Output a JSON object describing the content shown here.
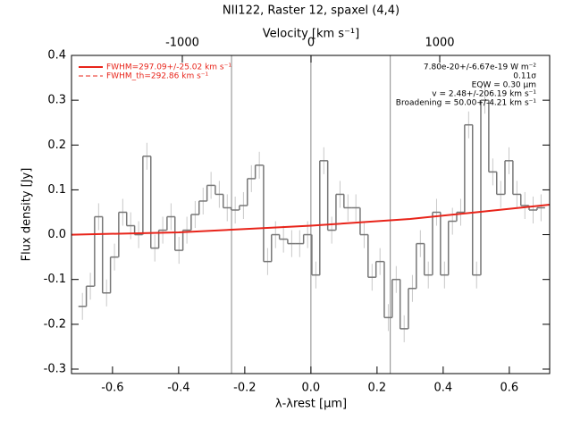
{
  "chart_data": {
    "type": "step",
    "title": "NII122, Raster 12, spaxel (4,4)",
    "xlabel": "λ-λrest [μm]",
    "ylabel": "Flux density [Jy]",
    "x2label": "Velocity [km s⁻¹]",
    "xlim": [
      -0.724,
      0.722
    ],
    "ylim": [
      -0.31,
      0.4
    ],
    "x2lim": [
      -1861,
      1854
    ],
    "xticks": [
      -0.6,
      -0.4,
      -0.2,
      {
        "value": 0,
        "label": "0.0"
      },
      0.2,
      0.4,
      0.6
    ],
    "yticks": [
      -0.3,
      -0.2,
      -0.1,
      {
        "value": 0,
        "label": "0.0"
      },
      0.1,
      0.2,
      0.3,
      0.4
    ],
    "x2ticks": [
      -1000,
      0,
      1000
    ],
    "vlines": [
      -0.24,
      0,
      0.24
    ],
    "bin_width": 0.0243,
    "x": [
      -0.691,
      -0.667,
      -0.642,
      -0.618,
      -0.594,
      -0.569,
      -0.545,
      -0.521,
      -0.496,
      -0.472,
      -0.448,
      -0.423,
      -0.399,
      -0.375,
      -0.35,
      -0.326,
      -0.302,
      -0.277,
      -0.253,
      -0.229,
      -0.204,
      -0.18,
      -0.156,
      -0.131,
      -0.107,
      -0.083,
      -0.058,
      -0.034,
      -0.01,
      0.015,
      0.039,
      0.063,
      0.088,
      0.112,
      0.136,
      0.161,
      0.185,
      0.209,
      0.234,
      0.258,
      0.282,
      0.307,
      0.331,
      0.355,
      0.38,
      0.404,
      0.428,
      0.453,
      0.477,
      0.501,
      0.526,
      0.55,
      0.574,
      0.599,
      0.623,
      0.647,
      0.672,
      0.696
    ],
    "series": [
      {
        "color": "#777777",
        "errcolor": "#c8c8c8",
        "values": [
          -0.16,
          -0.115,
          0.04,
          -0.13,
          -0.05,
          0.05,
          0.02,
          0.0,
          0.175,
          -0.03,
          0.01,
          0.04,
          -0.035,
          0.01,
          0.045,
          0.075,
          0.11,
          0.09,
          0.06,
          0.055,
          0.065,
          0.125,
          0.155,
          -0.06,
          0.0,
          -0.01,
          -0.02,
          -0.02,
          0.0,
          -0.09,
          0.165,
          0.01,
          0.09,
          0.06,
          0.06,
          0.0,
          -0.095,
          -0.06,
          -0.185,
          -0.1,
          -0.21,
          -0.12,
          -0.02,
          -0.09,
          0.05,
          -0.09,
          0.03,
          0.05,
          0.245,
          -0.09,
          0.3,
          0.14,
          0.09,
          0.165,
          0.09,
          0.065,
          0.055,
          0.06
        ],
        "errors": [
          0.03,
          0.03,
          0.03,
          0.03,
          0.03,
          0.03,
          0.03,
          0.03,
          0.03,
          0.03,
          0.03,
          0.03,
          0.03,
          0.03,
          0.03,
          0.03,
          0.03,
          0.03,
          0.03,
          0.03,
          0.03,
          0.03,
          0.03,
          0.03,
          0.03,
          0.03,
          0.03,
          0.03,
          0.03,
          0.03,
          0.03,
          0.03,
          0.03,
          0.03,
          0.03,
          0.03,
          0.03,
          0.03,
          0.03,
          0.03,
          0.03,
          0.03,
          0.03,
          0.03,
          0.03,
          0.03,
          0.03,
          0.03,
          0.03,
          0.03,
          0.03,
          0.03,
          0.03,
          0.03,
          0.03,
          0.03,
          0.03,
          0.03
        ]
      },
      {
        "name": "FWHM=297.09+/-25.02 km s⁻¹",
        "color": "#e8241a",
        "style": "solid",
        "x": [
          -0.724,
          -0.4,
          0,
          0.3,
          0.5,
          0.722
        ],
        "values": [
          0.0,
          0.005,
          0.02,
          0.035,
          0.05,
          0.067
        ]
      },
      {
        "name": "FWHM_th=292.86 km s⁻¹",
        "color": "#e8241a",
        "style": "dashed",
        "x": [
          -0.724,
          -0.4,
          0,
          0.3,
          0.5,
          0.722
        ],
        "values": [
          0.0,
          0.005,
          0.02,
          0.035,
          0.05,
          0.067
        ]
      }
    ],
    "annotations": [
      "7.80e-20+/-6.67e-19 W m⁻²",
      "0.11σ",
      "EQW = 0.30 μm",
      "v = 2.48+/-206.19 km s⁻¹",
      "Broadening = 50.00+/-4.21 km s⁻¹"
    ]
  }
}
